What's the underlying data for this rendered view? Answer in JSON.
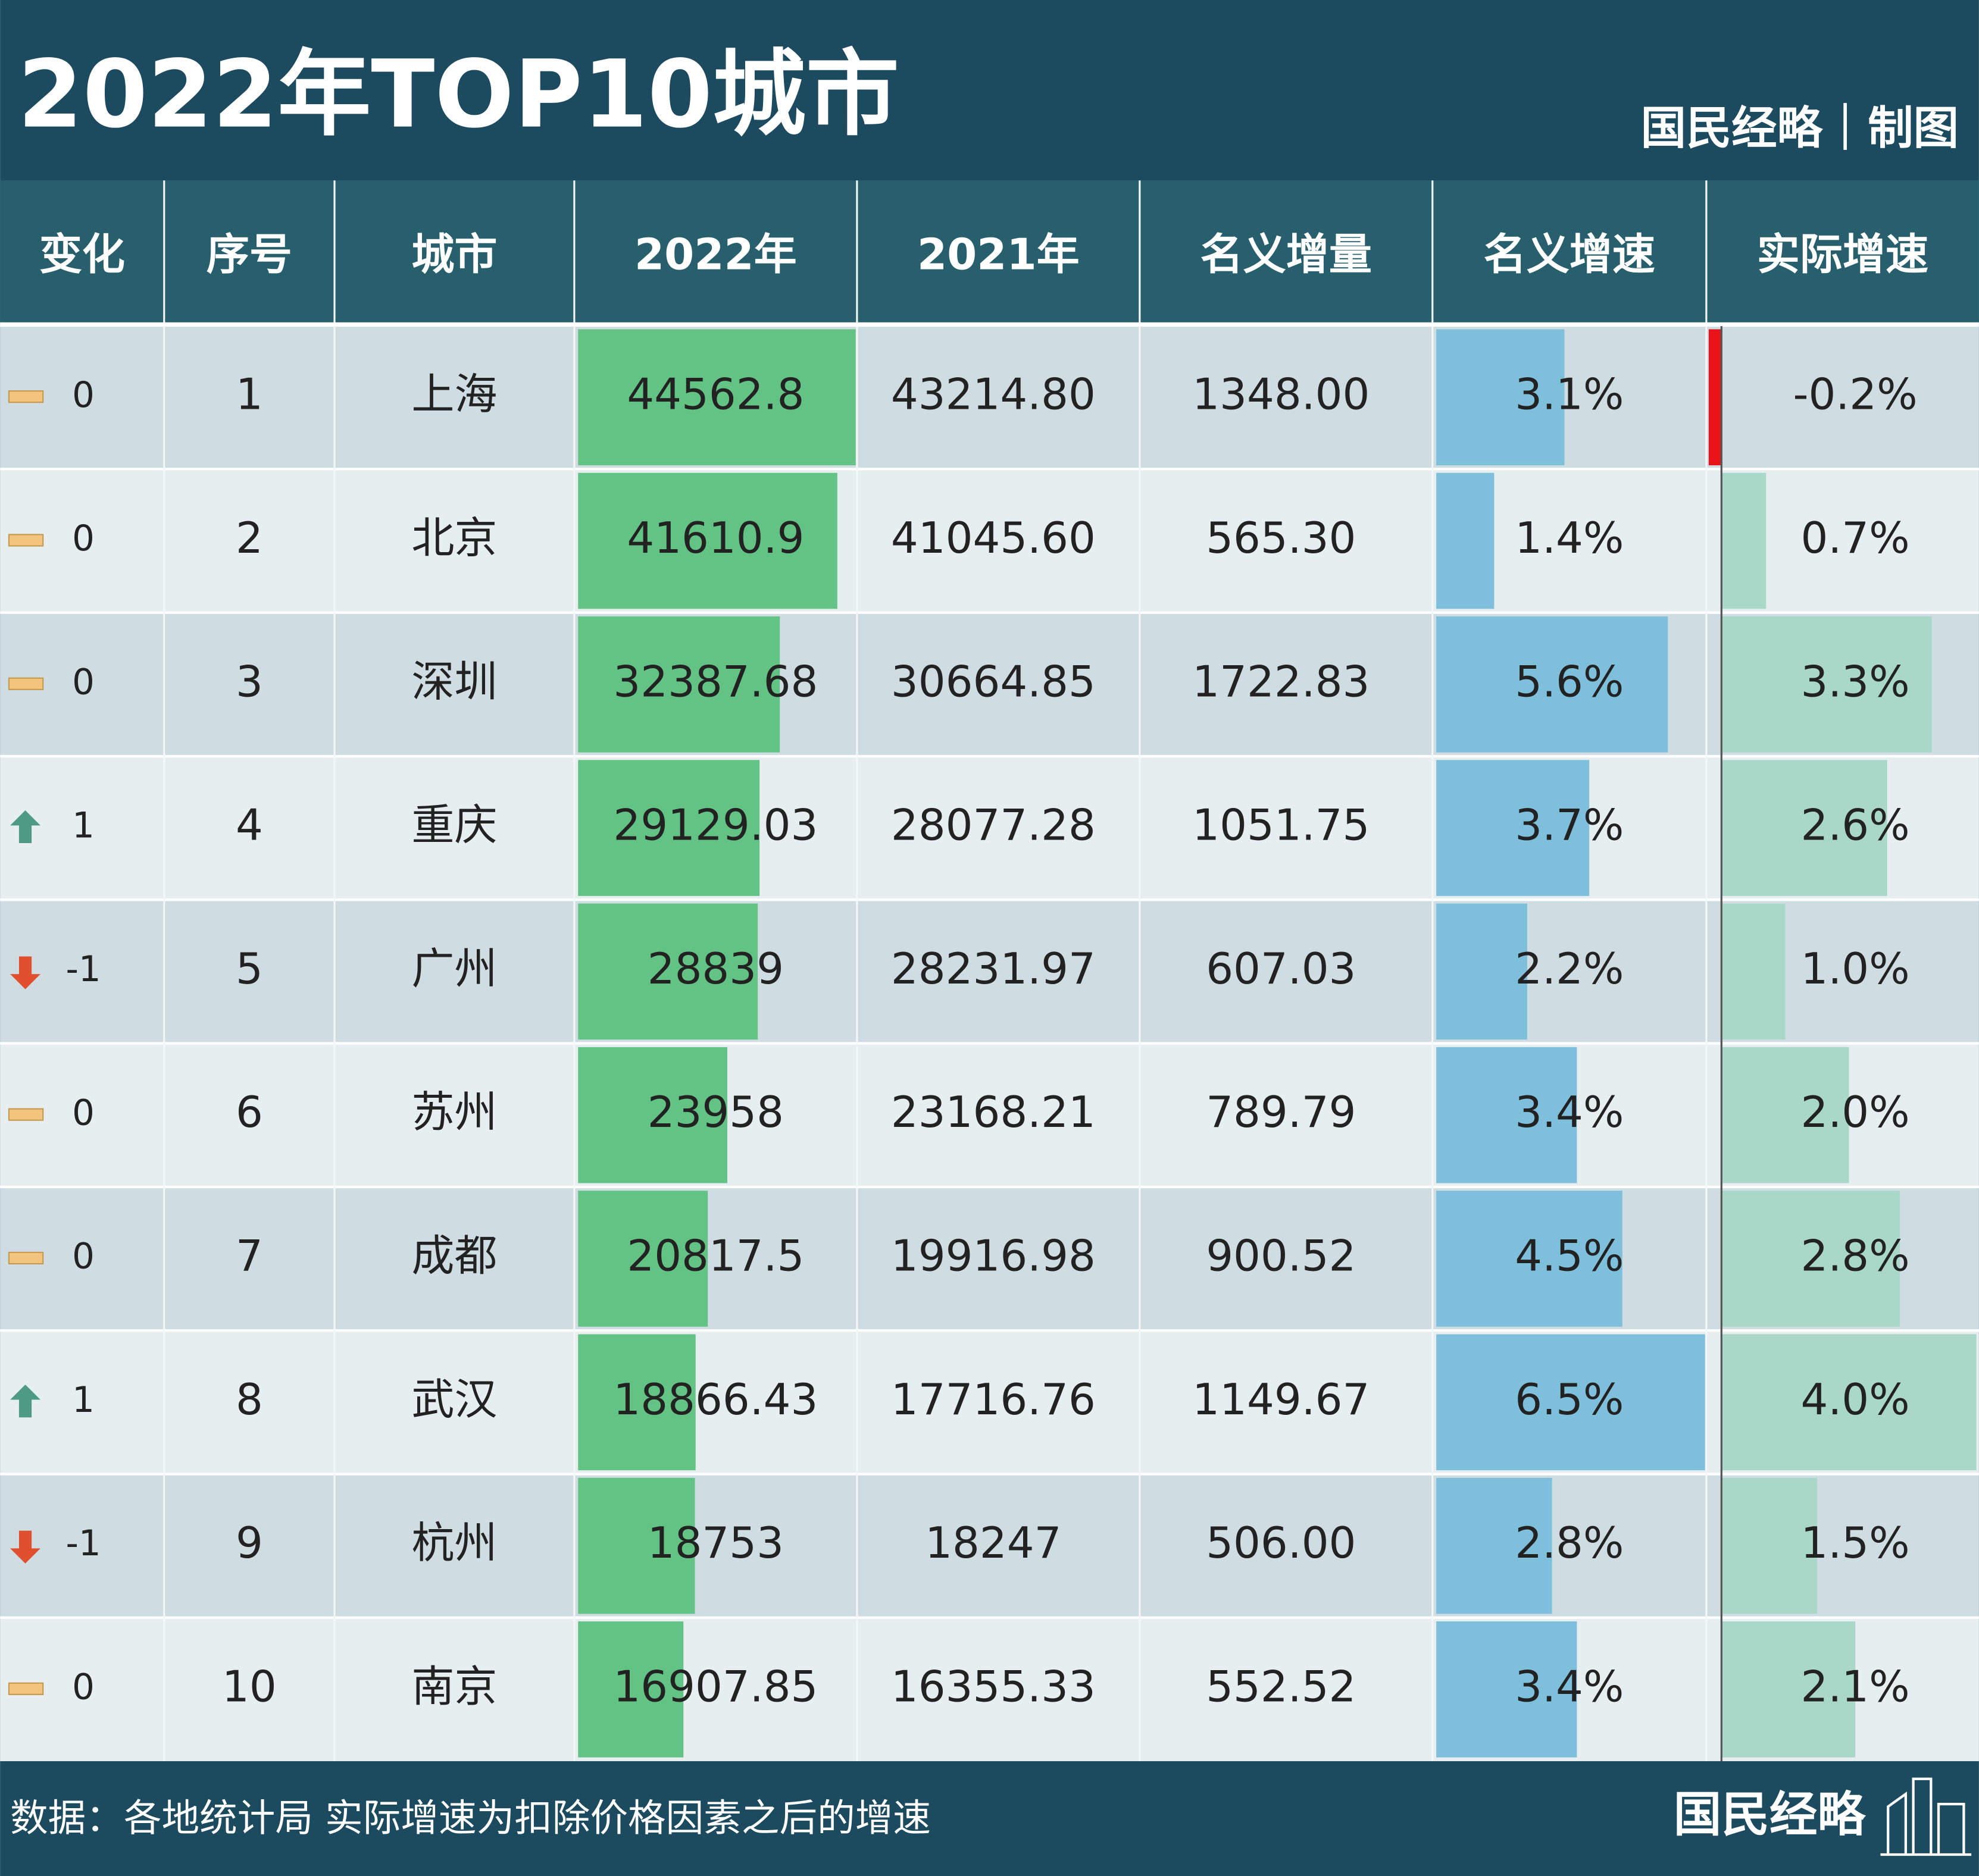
{
  "header": {
    "title": "2022年TOP10城市",
    "credit": "国民经略｜制图"
  },
  "table": {
    "columns": [
      "变化",
      "序号",
      "城市",
      "2022年",
      "2021年",
      "名义增量",
      "名义增速",
      "实际增速"
    ],
    "rows": [
      [
        "0",
        "1",
        "上海",
        "44562.8",
        "43214.80",
        "1348.00",
        "3.1%",
        "-0.2%"
      ],
      [
        "0",
        "2",
        "北京",
        "41610.9",
        "41045.60",
        "565.30",
        "1.4%",
        "0.7%"
      ],
      [
        "0",
        "3",
        "深圳",
        "32387.68",
        "30664.85",
        "1722.83",
        "5.6%",
        "3.3%"
      ],
      [
        "1",
        "4",
        "重庆",
        "29129.03",
        "28077.28",
        "1051.75",
        "3.7%",
        "2.6%"
      ],
      [
        "-1",
        "5",
        "广州",
        "28839",
        "28231.97",
        "607.03",
        "2.2%",
        "1.0%"
      ],
      [
        "0",
        "6",
        "苏州",
        "23958",
        "23168.21",
        "789.79",
        "3.4%",
        "2.0%"
      ],
      [
        "0",
        "7",
        "成都",
        "20817.5",
        "19916.98",
        "900.52",
        "4.5%",
        "2.8%"
      ],
      [
        "1",
        "8",
        "武汉",
        "18866.43",
        "17716.76",
        "1149.67",
        "6.5%",
        "4.0%"
      ],
      [
        "-1",
        "9",
        "杭州",
        "18753",
        "18247",
        "506.00",
        "2.8%",
        "1.5%"
      ],
      [
        "0",
        "10",
        "南京",
        "16907.85",
        "16355.33",
        "552.52",
        "3.4%",
        "2.1%"
      ]
    ]
  },
  "footer": {
    "note": "数据：各地统计局  实际增速为扣除价格因素之后的增速",
    "logo": "国民经略"
  }
}
